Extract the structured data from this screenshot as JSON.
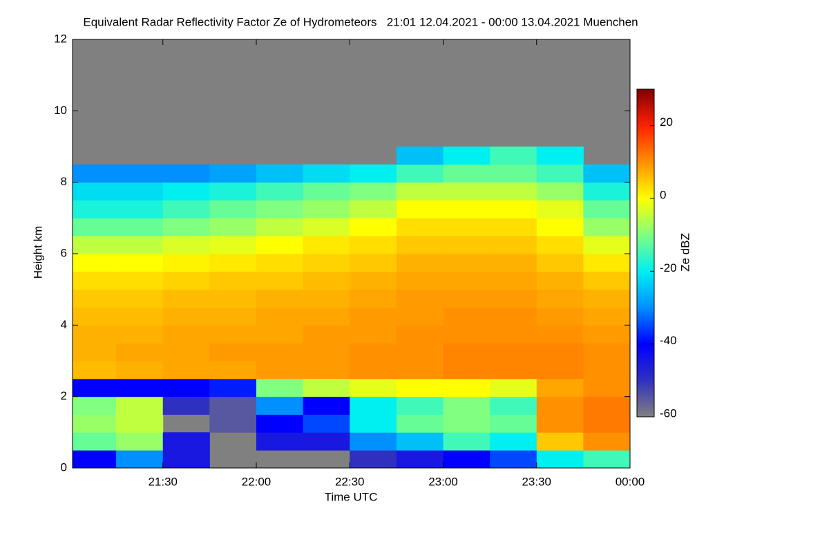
{
  "chart_data": {
    "type": "heatmap",
    "title": "Equivalent Radar Reflectivity Factor Ze of Hydrometeors   21:01 12.04.2021 - 00:00 13.04.2021 Muenchen",
    "x_label": "Time UTC",
    "y_label": "Height km",
    "xlim": [
      21.0167,
      24.0
    ],
    "xticks": [
      {
        "value": 21.5,
        "label": "21:30"
      },
      {
        "value": 22.0,
        "label": "22:00"
      },
      {
        "value": 22.5,
        "label": "22:30"
      },
      {
        "value": 23.0,
        "label": "23:00"
      },
      {
        "value": 23.5,
        "label": "23:30"
      },
      {
        "value": 24.0,
        "label": "00:00"
      }
    ],
    "ylim": [
      0,
      12
    ],
    "yticks": [
      0,
      2,
      4,
      6,
      8,
      10,
      12
    ],
    "x": [
      21.125,
      21.375,
      21.625,
      21.875,
      22.125,
      22.375,
      22.625,
      22.875,
      23.125,
      23.375,
      23.625,
      23.875
    ],
    "y": [
      0.25,
      0.75,
      1.25,
      1.75,
      2.25,
      2.75,
      3.25,
      3.75,
      4.25,
      4.75,
      5.25,
      5.75,
      6.25,
      6.75,
      7.25,
      7.75,
      8.25,
      8.75,
      9.25,
      9.75,
      10.25,
      10.75,
      11.25,
      11.75
    ],
    "z": [
      [
        -40,
        -30,
        -45,
        null,
        null,
        null,
        -50,
        -45,
        -40,
        -35,
        -20,
        -15
      ],
      [
        -12,
        -8,
        -45,
        null,
        -45,
        -45,
        -30,
        -25,
        -15,
        -20,
        5,
        10
      ],
      [
        -8,
        -5,
        null,
        -55,
        -40,
        -35,
        -20,
        -12,
        -10,
        -12,
        10,
        12
      ],
      [
        -10,
        -5,
        -50,
        -55,
        -30,
        -40,
        -20,
        -15,
        -10,
        -15,
        10,
        12
      ],
      [
        -40,
        -40,
        -40,
        -38,
        -10,
        -5,
        -2,
        0,
        0,
        -2,
        8,
        10
      ],
      [
        6,
        7,
        8,
        8,
        9,
        9,
        10,
        10,
        11,
        11,
        11,
        10
      ],
      [
        7,
        8,
        8,
        9,
        9,
        9,
        10,
        10,
        11,
        11,
        11,
        10
      ],
      [
        7,
        7,
        8,
        8,
        8,
        9,
        9,
        10,
        10,
        10,
        10,
        9
      ],
      [
        6,
        6,
        7,
        7,
        8,
        8,
        9,
        9,
        10,
        10,
        9,
        8
      ],
      [
        5,
        5,
        6,
        6,
        7,
        7,
        8,
        9,
        9,
        9,
        8,
        7
      ],
      [
        3,
        3,
        4,
        5,
        5,
        6,
        7,
        8,
        8,
        8,
        7,
        5
      ],
      [
        0,
        0,
        1,
        2,
        3,
        4,
        5,
        7,
        7,
        7,
        5,
        2
      ],
      [
        -5,
        -5,
        -3,
        -2,
        0,
        2,
        3,
        5,
        5,
        5,
        3,
        -2
      ],
      [
        -12,
        -12,
        -10,
        -8,
        -5,
        -3,
        0,
        3,
        3,
        3,
        0,
        -8
      ],
      [
        -18,
        -18,
        -15,
        -12,
        -10,
        -8,
        -5,
        0,
        0,
        0,
        -2,
        -12
      ],
      [
        -22,
        -22,
        -20,
        -18,
        -15,
        -12,
        -10,
        -5,
        -5,
        -5,
        -8,
        -18
      ],
      [
        -30,
        -30,
        -30,
        -28,
        -25,
        -22,
        -20,
        -15,
        -12,
        -12,
        -15,
        -25
      ],
      [
        null,
        null,
        null,
        null,
        null,
        null,
        null,
        -25,
        -20,
        -15,
        -20,
        null
      ],
      [
        null,
        null,
        null,
        null,
        null,
        null,
        null,
        null,
        null,
        null,
        null,
        null
      ],
      [
        null,
        null,
        null,
        null,
        null,
        null,
        null,
        null,
        null,
        null,
        null,
        null
      ],
      [
        null,
        null,
        null,
        null,
        null,
        null,
        null,
        null,
        null,
        null,
        null,
        null
      ],
      [
        null,
        null,
        null,
        null,
        null,
        null,
        null,
        null,
        null,
        null,
        null,
        null
      ],
      [
        null,
        null,
        null,
        null,
        null,
        null,
        null,
        null,
        null,
        null,
        null,
        null
      ],
      [
        null,
        null,
        null,
        null,
        null,
        null,
        null,
        null,
        null,
        null,
        null,
        null
      ]
    ],
    "background_color": "#808080",
    "colorbar": {
      "label": "Ze dBZ",
      "lim": [
        -60,
        30
      ],
      "ticks": [
        -60,
        -40,
        -20,
        0,
        20
      ],
      "colors": [
        "#808080",
        "#3030c0",
        "#0000ff",
        "#0090ff",
        "#00f0f0",
        "#80ff80",
        "#ffff00",
        "#ff9000",
        "#ff2000",
        "#800000"
      ]
    }
  }
}
